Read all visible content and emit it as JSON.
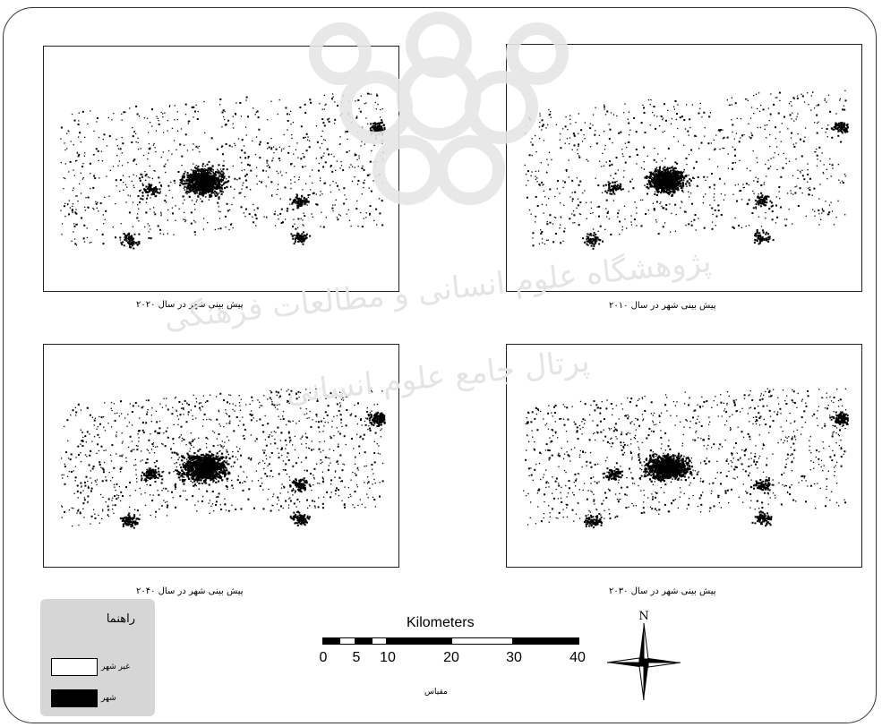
{
  "maps": [
    {
      "caption": "پیش بینی شهر در سال ۲۰۲۰"
    },
    {
      "caption": "پیش بینی شهر در سال ۲۰۱۰"
    },
    {
      "caption": "پیش بینی شهر در سال ۲۰۴۰"
    },
    {
      "caption": "پیش بینی شهر در سال ۲۰۳۰"
    }
  ],
  "legend": {
    "title": "راهنما",
    "items": [
      {
        "label": "غیر شهر",
        "color": "#ffffff"
      },
      {
        "label": "شهر",
        "color": "#000000"
      }
    ]
  },
  "scale": {
    "title": "Kilometers",
    "ticks": [
      "0",
      "5",
      "10",
      "20",
      "30",
      "40"
    ],
    "caption": "مقیاس"
  },
  "north": {
    "label": "N"
  },
  "watermark": {
    "line1": "پژوهشگاه علوم انسانی و مطالعات فرهنگی",
    "line2": "پرتال جامع علوم انسانی"
  }
}
